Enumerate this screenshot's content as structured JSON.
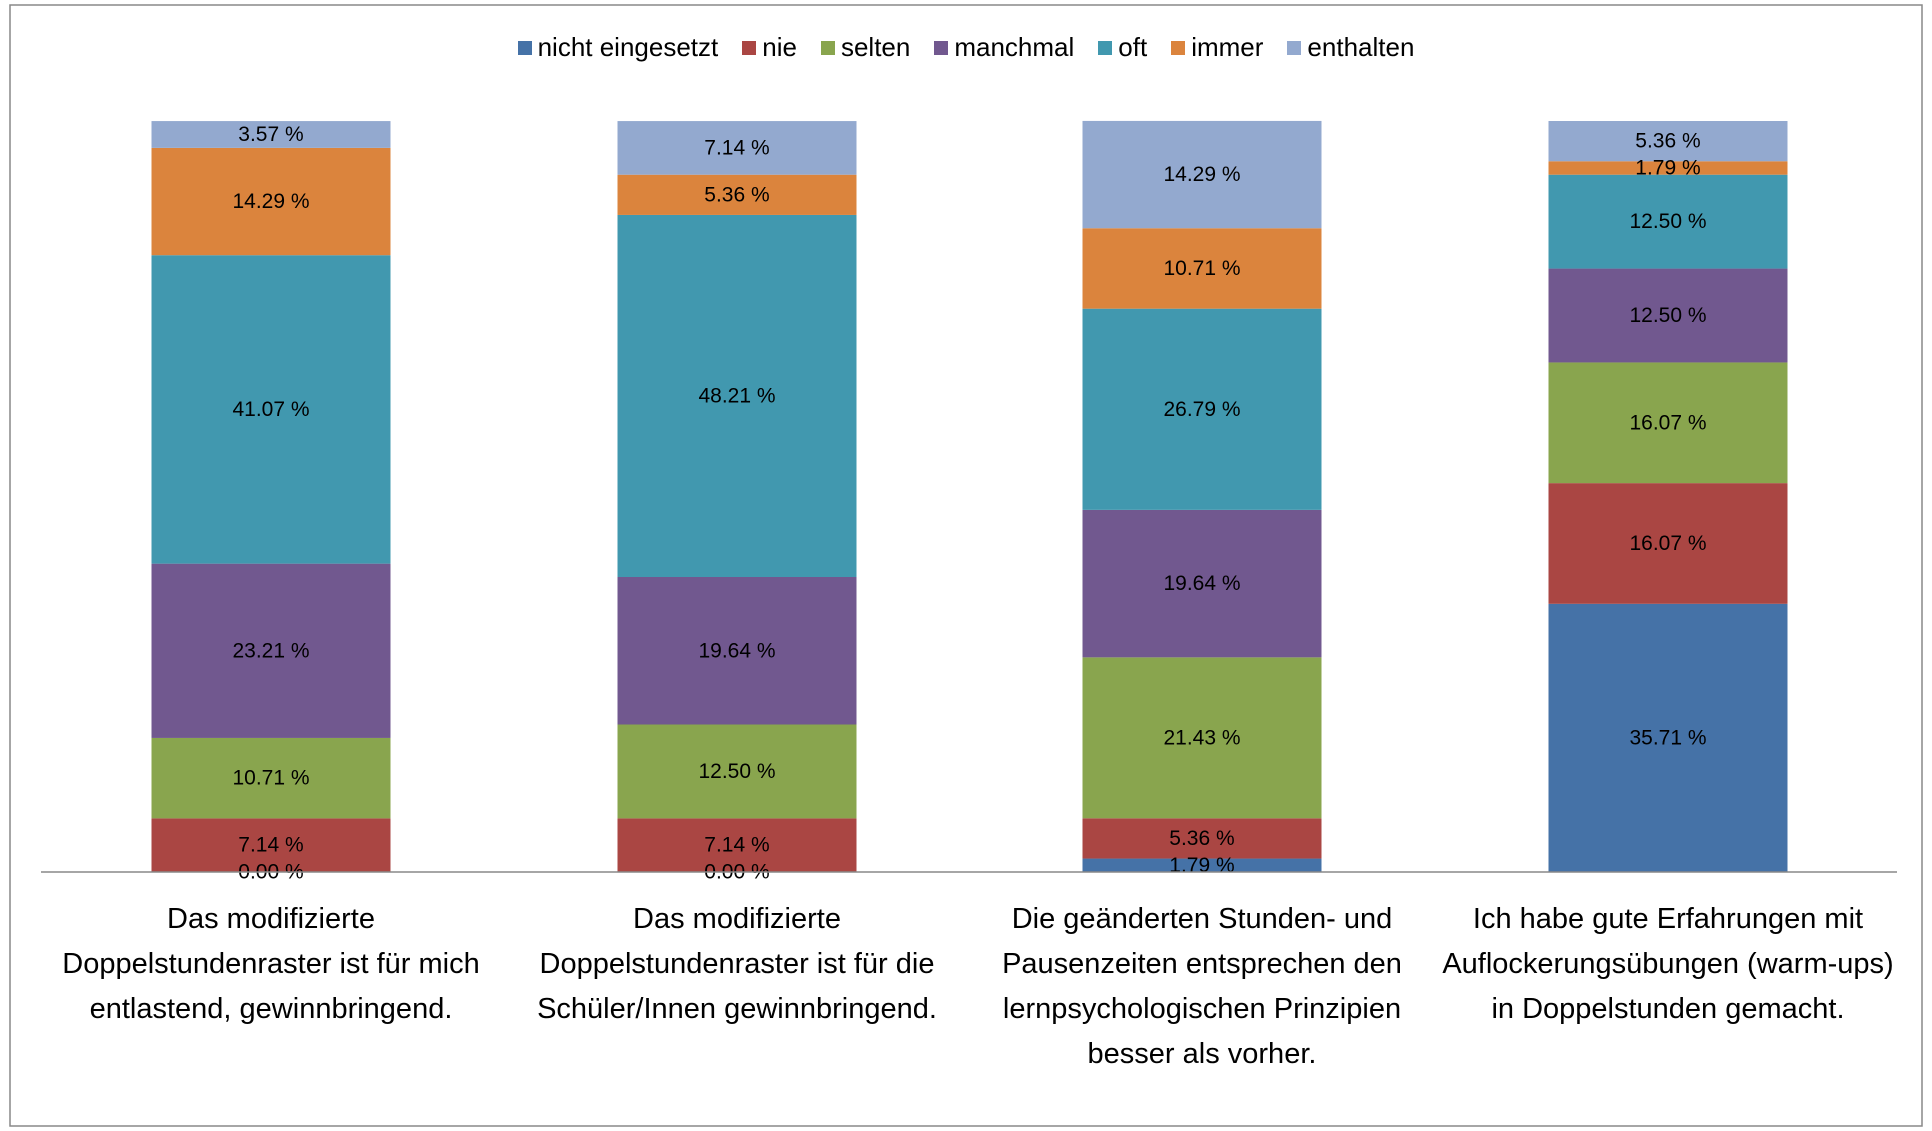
{
  "chart_data": {
    "type": "stacked_bar",
    "categories": [
      "Das modifizierte Doppelstundenraster ist für mich entlastend, gewinnbringend.",
      "Das modifizierte Doppelstundenraster ist für die Schüler/Innen gewinnbringend.",
      "Die geänderten Stunden- und Pausenzeiten entsprechen den lernpsychologischen Prinzipien besser als vorher.",
      "Ich habe gute Erfahrungen mit Auflockerungsübungen (warm-ups) in Doppelstunden gemacht."
    ],
    "ylim": [
      0,
      100
    ],
    "legend": "top",
    "series": [
      {
        "name": "nicht eingesetzt",
        "color": "#4572a7",
        "values": [
          0.0,
          0.0,
          1.79,
          35.71
        ],
        "value_labels": [
          "0.00 %",
          "0.00 %",
          "1.79 %",
          "35.71 %"
        ]
      },
      {
        "name": "nie",
        "color": "#aa4643",
        "values": [
          7.14,
          7.14,
          5.36,
          16.07
        ],
        "value_labels": [
          "7.14 %",
          "7.14 %",
          "5.36 %",
          "16.07 %"
        ]
      },
      {
        "name": "selten",
        "color": "#89a54e",
        "values": [
          10.71,
          12.5,
          21.43,
          16.07
        ],
        "value_labels": [
          "10.71 %",
          "12.50 %",
          "21.43 %",
          "16.07 %"
        ]
      },
      {
        "name": "manchmal",
        "color": "#71588f",
        "values": [
          23.21,
          19.64,
          19.64,
          12.5
        ],
        "value_labels": [
          "23.21 %",
          "19.64 %",
          "19.64 %",
          "12.50 %"
        ]
      },
      {
        "name": "oft",
        "color": "#4198af",
        "values": [
          41.07,
          48.21,
          26.79,
          12.5
        ],
        "value_labels": [
          "41.07 %",
          "48.21 %",
          "26.79 %",
          "12.50 %"
        ]
      },
      {
        "name": "immer",
        "color": "#db843d",
        "values": [
          14.29,
          5.36,
          10.71,
          1.79
        ],
        "value_labels": [
          "14.29 %",
          "5.36 %",
          "10.71 %",
          "1.79 %"
        ]
      },
      {
        "name": "enthalten",
        "color": "#93a9cf",
        "values": [
          3.57,
          7.14,
          14.29,
          5.36
        ],
        "value_labels": [
          "3.57 %",
          "7.14 %",
          "14.29 %",
          "5.36 %"
        ]
      }
    ]
  }
}
